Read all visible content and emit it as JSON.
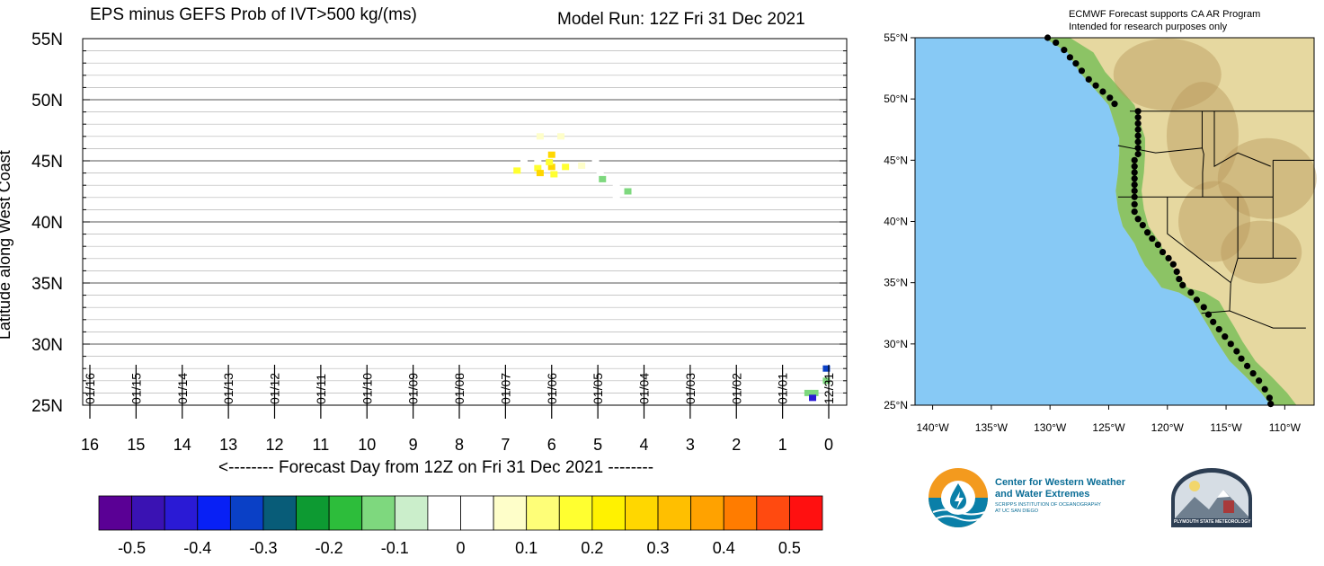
{
  "header": {
    "title": "EPS minus GEFS Prob of IVT>500 kg/(ms)",
    "model_run": "Model Run: 12Z Fri 31 Dec 2021"
  },
  "chart_data": {
    "type": "heatmap",
    "title": "EPS minus GEFS Prob of IVT>500 kg/(ms)",
    "xlabel": "<-------- Forecast Day from 12Z on Fri 31 Dec 2021 --------",
    "ylabel": "Latitude along West Coast",
    "xlim": [
      16,
      0
    ],
    "ylim": [
      25,
      55
    ],
    "x_ticks": [
      "16",
      "15",
      "14",
      "13",
      "12",
      "11",
      "10",
      "9",
      "8",
      "7",
      "6",
      "5",
      "4",
      "3",
      "2",
      "1",
      "0"
    ],
    "y_ticks": [
      "25N",
      "30N",
      "35N",
      "40N",
      "45N",
      "50N",
      "55N"
    ],
    "date_labels": [
      {
        "day": 16,
        "label": "01/16"
      },
      {
        "day": 15,
        "label": "01/15"
      },
      {
        "day": 14,
        "label": "01/14"
      },
      {
        "day": 13,
        "label": "01/13"
      },
      {
        "day": 12,
        "label": "01/12"
      },
      {
        "day": 11,
        "label": "01/11"
      },
      {
        "day": 10,
        "label": "01/10"
      },
      {
        "day": 9,
        "label": "01/09"
      },
      {
        "day": 8,
        "label": "01/08"
      },
      {
        "day": 7,
        "label": "01/07"
      },
      {
        "day": 6,
        "label": "01/06"
      },
      {
        "day": 5,
        "label": "01/05"
      },
      {
        "day": 4,
        "label": "01/04"
      },
      {
        "day": 3,
        "label": "01/03"
      },
      {
        "day": 2,
        "label": "01/02"
      },
      {
        "day": 1,
        "label": "01/01"
      },
      {
        "day": 0,
        "label": "12/31"
      }
    ],
    "grid": true,
    "cells": [
      {
        "day": 6.6,
        "lat": 45.1,
        "value": -0.05
      },
      {
        "day": 6.3,
        "lat": 45.2,
        "value": -0.05
      },
      {
        "day": 6.3,
        "lat": 44.4,
        "value": 0.15
      },
      {
        "day": 6.25,
        "lat": 44.0,
        "value": 0.25
      },
      {
        "day": 6.0,
        "lat": 44.5,
        "value": 0.25
      },
      {
        "day": 6.0,
        "lat": 45.5,
        "value": 0.25
      },
      {
        "day": 6.05,
        "lat": 44.9,
        "value": 0.15
      },
      {
        "day": 5.95,
        "lat": 43.9,
        "value": 0.15
      },
      {
        "day": 6.25,
        "lat": 47.0,
        "value": 0.05
      },
      {
        "day": 5.8,
        "lat": 47.0,
        "value": 0.05
      },
      {
        "day": 6.75,
        "lat": 44.2,
        "value": 0.15
      },
      {
        "day": 5.7,
        "lat": 44.5,
        "value": 0.15
      },
      {
        "day": 5.35,
        "lat": 44.6,
        "value": 0.05
      },
      {
        "day": 4.95,
        "lat": 44.1,
        "value": -0.05
      },
      {
        "day": 4.85,
        "lat": 43.4,
        "value": -0.05
      },
      {
        "day": 4.6,
        "lat": 42.8,
        "value": -0.05
      },
      {
        "day": 4.35,
        "lat": 43.3,
        "value": -0.05
      },
      {
        "day": 4.8,
        "lat": 42.6,
        "value": -0.05
      },
      {
        "day": 5.05,
        "lat": 45.1,
        "value": -0.05
      },
      {
        "day": 4.9,
        "lat": 43.5,
        "value": -0.15
      },
      {
        "day": 4.35,
        "lat": 42.5,
        "value": -0.15
      },
      {
        "day": 4.6,
        "lat": 42.2,
        "value": -0.05
      },
      {
        "day": 0.3,
        "lat": 26.0,
        "value": -0.15
      },
      {
        "day": 0.45,
        "lat": 26.0,
        "value": -0.15
      },
      {
        "day": 0.35,
        "lat": 25.6,
        "value": -0.45
      },
      {
        "day": 0.05,
        "lat": 27.0,
        "value": -0.15
      },
      {
        "day": 0.05,
        "lat": 28.0,
        "value": -0.35
      }
    ]
  },
  "colorbar": {
    "colors": [
      "#5a0095",
      "#3a12b3",
      "#2a1ad5",
      "#0820f5",
      "#0a40c6",
      "#085c78",
      "#0d9a32",
      "#2dbd3b",
      "#7ed87e",
      "#cbeecb",
      "#ffffff",
      "#ffffff",
      "#fefec9",
      "#fefe78",
      "#ffff30",
      "#fff200",
      "#ffd700",
      "#ffbf00",
      "#ffa200",
      "#ff7c00",
      "#ff4a10",
      "#ff1010"
    ],
    "labels": [
      "-0.5",
      "-0.4",
      "-0.3",
      "-0.2",
      "-0.1",
      "0",
      "0.1",
      "0.2",
      "0.3",
      "0.4",
      "0.5"
    ]
  },
  "map": {
    "header_line1": "ECMWF Forecast supports CA AR Program",
    "header_line2": "Intended for research purposes only",
    "lat_labels": [
      "55°N",
      "50°N",
      "45°N",
      "40°N",
      "35°N",
      "30°N",
      "25°N"
    ],
    "lon_labels": [
      "140°W",
      "135°W",
      "130°W",
      "125°W",
      "120°W",
      "115°W",
      "110°W"
    ],
    "ocean_color": "#87c9f5",
    "land_color": "#e6d8a0"
  },
  "logos": {
    "cw3e_line1": "Center for Western Weather",
    "cw3e_line2": "and Water Extremes",
    "cw3e_line3": "SCRIPPS INSTITUTION OF OCEANOGRAPHY",
    "cw3e_line4": "AT UC SAN DIEGO",
    "psu": "PLYMOUTH STATE METEOROLOGY"
  }
}
